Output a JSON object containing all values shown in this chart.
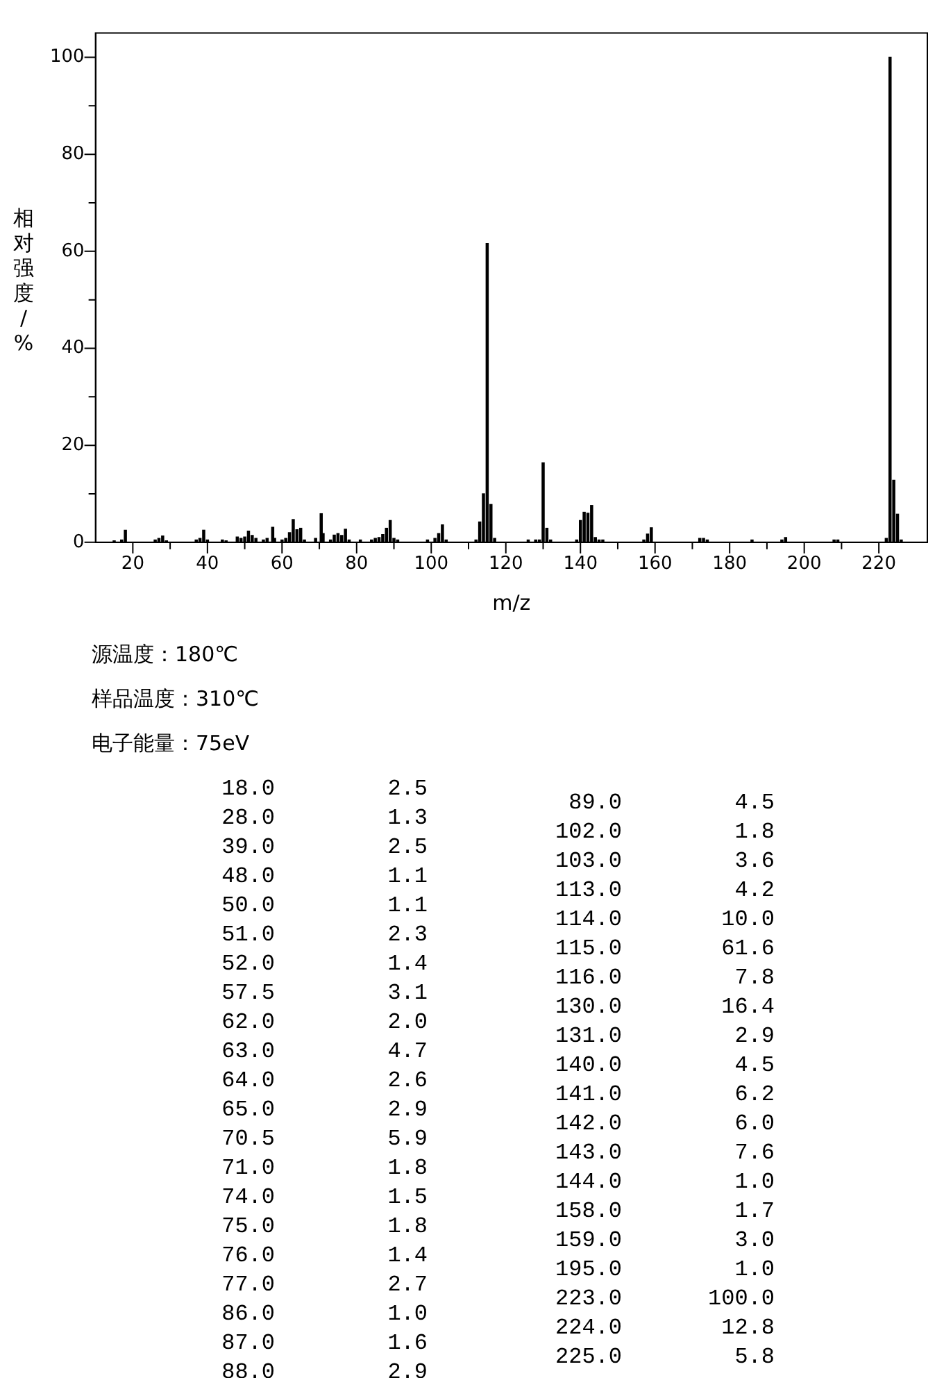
{
  "chart_data": [
    {
      "type": "bar",
      "ylabel": "相对强度/%",
      "xlabel": "m/z",
      "xlim": [
        10,
        233
      ],
      "ylim": [
        0,
        105
      ],
      "xticks": [
        20,
        {
          "value": 30,
          "label": null
        },
        40,
        {
          "value": 50,
          "label": null
        },
        60,
        {
          "value": 70,
          "label": null
        },
        80,
        {
          "value": 90,
          "label": null
        },
        100,
        {
          "value": 110,
          "label": null
        },
        120,
        {
          "value": 130,
          "label": null
        },
        140,
        {
          "value": 150,
          "label": null
        },
        160,
        {
          "value": 170,
          "label": null
        },
        180,
        {
          "value": 190,
          "label": null
        },
        200,
        {
          "value": 210,
          "label": null
        },
        220
      ],
      "yticks": [
        0,
        {
          "value": 10,
          "label": null
        },
        20,
        {
          "value": 30,
          "label": null
        },
        40,
        {
          "value": 50,
          "label": null
        },
        60,
        {
          "value": 70,
          "label": null
        },
        80,
        {
          "value": 90,
          "label": null
        },
        100
      ],
      "grid": false,
      "legend": false,
      "annotations": [
        "源温度：180℃",
        "样品温度：310℃",
        "电子能量：75eV"
      ],
      "series": [
        {
          "color": "#000000",
          "x": [
            15,
            17,
            18,
            26,
            27,
            28,
            29,
            37,
            38,
            39,
            40,
            44,
            45,
            48,
            49,
            50,
            51,
            52,
            53,
            55,
            56,
            57.5,
            58,
            60,
            61,
            62,
            63,
            64,
            65,
            66,
            69,
            70.5,
            71,
            73,
            74,
            75,
            76,
            77,
            78,
            81,
            84,
            85,
            86,
            87,
            88,
            89,
            90,
            91,
            99,
            101,
            102,
            103,
            104,
            112,
            113,
            114,
            115,
            116,
            117,
            126,
            128,
            129,
            130,
            131,
            132,
            139,
            140,
            141,
            142,
            143,
            144,
            145,
            146,
            157,
            158,
            159,
            172,
            173,
            174,
            186,
            194,
            195,
            208,
            209,
            222,
            223,
            224,
            225,
            226
          ],
          "values": [
            0.3,
            0.5,
            2.5,
            0.5,
            0.8,
            1.3,
            0.3,
            0.5,
            0.8,
            2.5,
            0.5,
            0.5,
            0.3,
            1.1,
            0.8,
            1.1,
            2.3,
            1.4,
            0.8,
            0.5,
            0.8,
            3.1,
            0.8,
            0.5,
            0.8,
            2.0,
            4.7,
            2.6,
            2.9,
            0.5,
            0.8,
            5.9,
            1.8,
            0.5,
            1.5,
            1.8,
            1.4,
            2.7,
            0.5,
            0.5,
            0.5,
            0.8,
            1.0,
            1.6,
            2.9,
            4.5,
            0.8,
            0.5,
            0.5,
            0.8,
            1.8,
            3.6,
            0.5,
            0.5,
            4.2,
            10.0,
            61.6,
            7.8,
            0.8,
            0.5,
            0.5,
            0.5,
            16.4,
            2.9,
            0.5,
            0.5,
            4.5,
            6.2,
            6.0,
            7.6,
            1.0,
            0.5,
            0.5,
            0.5,
            1.7,
            3.0,
            0.8,
            0.8,
            0.5,
            0.5,
            0.5,
            1.0,
            0.5,
            0.5,
            0.8,
            100.0,
            12.8,
            5.8,
            0.5
          ]
        }
      ]
    },
    {
      "type": "other",
      "categories": [
        "18.0",
        "28.0",
        "39.0",
        "48.0",
        "50.0",
        "51.0",
        "52.0",
        "57.5",
        "62.0",
        "63.0",
        "64.0",
        "65.0",
        "70.5",
        "71.0",
        "74.0",
        "75.0",
        "76.0",
        "77.0",
        "86.0",
        "87.0",
        "88.0",
        "89.0",
        "102.0",
        "103.0",
        "113.0",
        "114.0",
        "115.0",
        "116.0",
        "130.0",
        "131.0",
        "140.0",
        "141.0",
        "142.0",
        "143.0",
        "144.0",
        "158.0",
        "159.0",
        "195.0",
        "223.0",
        "224.0",
        "225.0"
      ],
      "values": [
        2.5,
        1.3,
        2.5,
        1.1,
        1.1,
        2.3,
        1.4,
        3.1,
        2.0,
        4.7,
        2.6,
        2.9,
        5.9,
        1.8,
        1.5,
        1.8,
        1.4,
        2.7,
        1.0,
        1.6,
        2.9,
        4.5,
        1.8,
        3.6,
        4.2,
        10.0,
        61.6,
        7.8,
        16.4,
        2.9,
        4.5,
        6.2,
        6.0,
        7.6,
        1.0,
        1.7,
        3.0,
        1.0,
        100.0,
        12.8,
        5.8
      ],
      "value_labels": [
        "2.5",
        "1.3",
        "2.5",
        "1.1",
        "1.1",
        "2.3",
        "1.4",
        "3.1",
        "2.0",
        "4.7",
        "2.6",
        "2.9",
        "5.9",
        "1.8",
        "1.5",
        "1.8",
        "1.4",
        "2.7",
        "1.0",
        "1.6",
        "2.9",
        "4.5",
        "1.8",
        "3.6",
        "4.2",
        "10.0",
        "61.6",
        "7.8",
        "16.4",
        "2.9",
        "4.5",
        "6.2",
        "6.0",
        "7.6",
        "1.0",
        "1.7",
        "3.0",
        "1.0",
        "100.0",
        "12.8",
        "5.8"
      ]
    }
  ]
}
